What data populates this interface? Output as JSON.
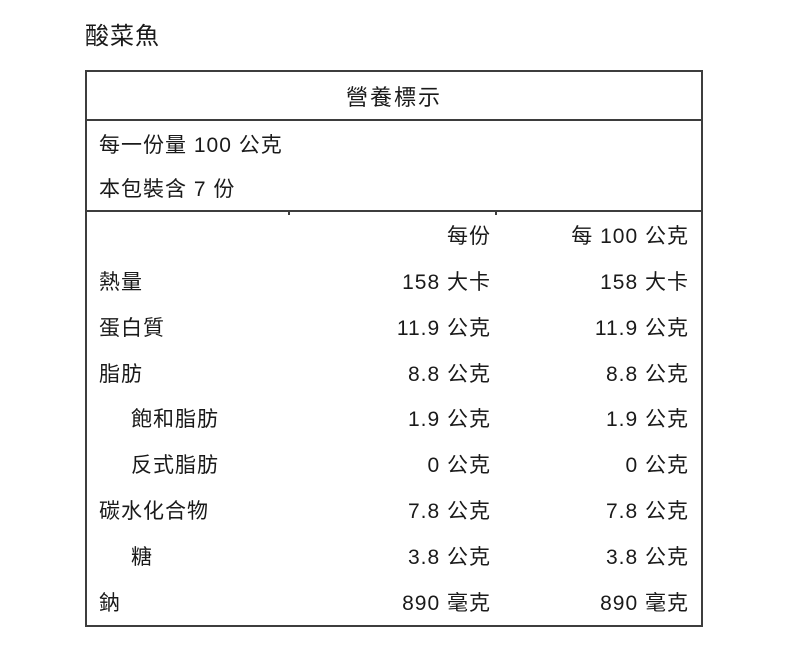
{
  "page_title": "酸菜魚",
  "nutrition_table": {
    "title": "營養標示",
    "serving_size": "每一份量 100 公克",
    "servings_per_package": "本包裝含 7 份",
    "column_headers": {
      "per_serving": "每份",
      "per_100g": "每 100 公克"
    },
    "rows": [
      {
        "label": "熱量",
        "indent": false,
        "per_serving": "158 大卡",
        "per_100g": "158 大卡"
      },
      {
        "label": "蛋白質",
        "indent": false,
        "per_serving": "11.9 公克",
        "per_100g": "11.9 公克"
      },
      {
        "label": "脂肪",
        "indent": false,
        "per_serving": "8.8 公克",
        "per_100g": "8.8 公克"
      },
      {
        "label": "飽和脂肪",
        "indent": true,
        "per_serving": "1.9 公克",
        "per_100g": "1.9 公克"
      },
      {
        "label": "反式脂肪",
        "indent": true,
        "per_serving": "0 公克",
        "per_100g": "0 公克"
      },
      {
        "label": "碳水化合物",
        "indent": false,
        "per_serving": "7.8 公克",
        "per_100g": "7.8 公克"
      },
      {
        "label": "糖",
        "indent": true,
        "per_serving": "3.8 公克",
        "per_100g": "3.8 公克"
      },
      {
        "label": "鈉",
        "indent": false,
        "per_serving": "890 毫克",
        "per_100g": "890 毫克"
      }
    ]
  },
  "colors": {
    "text": "#1a1a1a",
    "border": "#3d3d3d",
    "background": "#ffffff"
  }
}
